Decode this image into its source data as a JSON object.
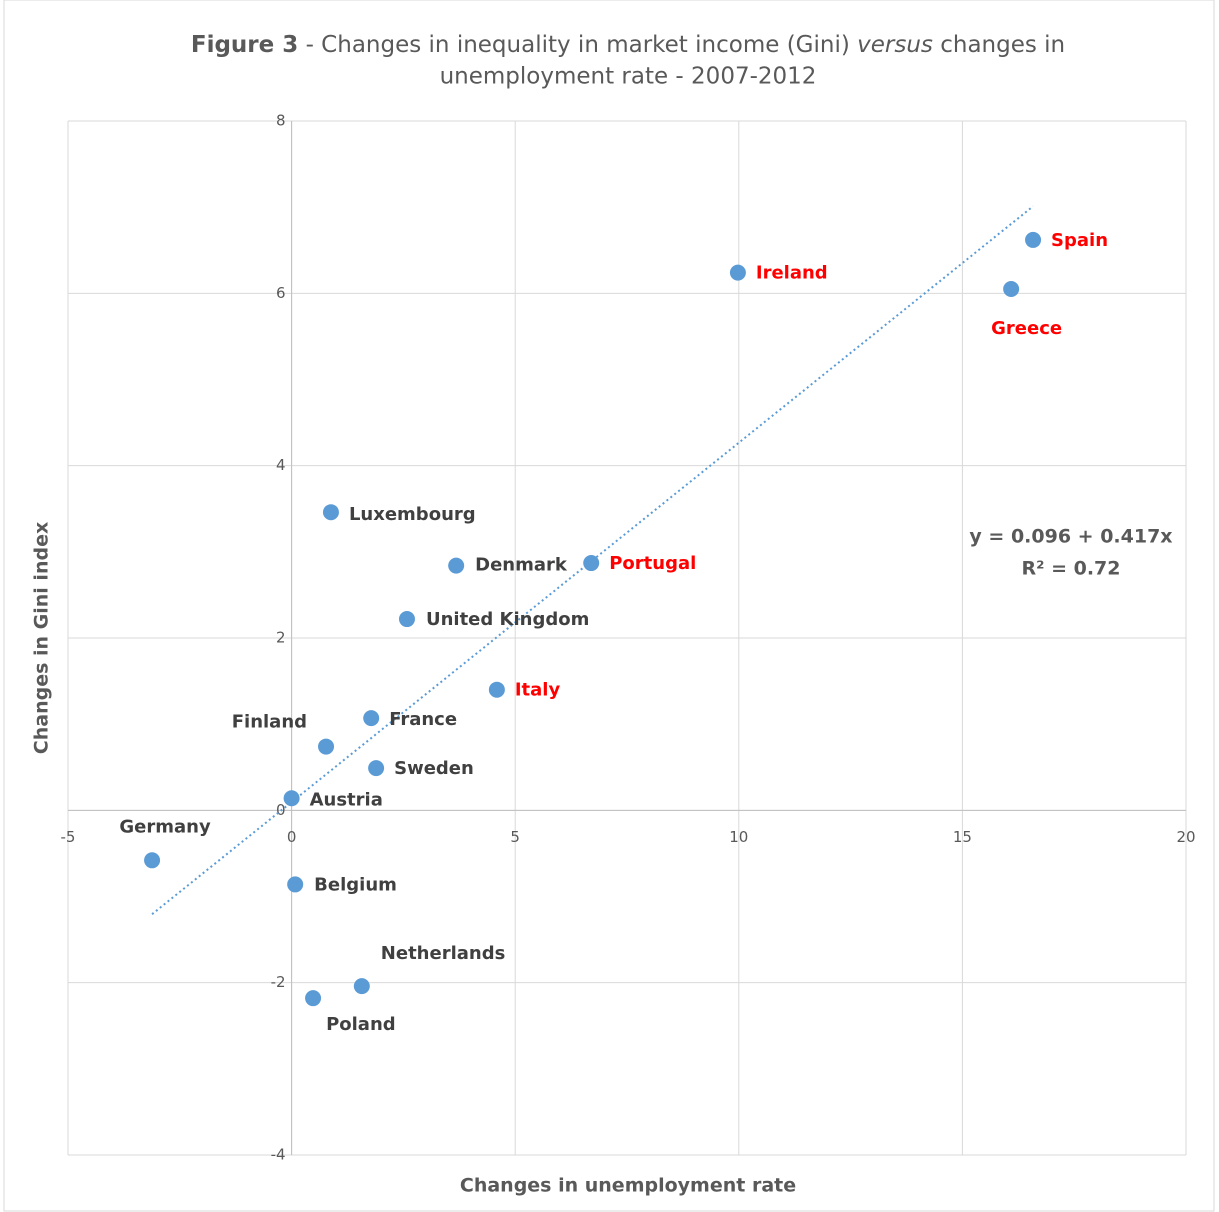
{
  "chart_data": {
    "type": "scatter",
    "title": {
      "line1": [
        "Figure 3",
        " - Changes in inequality in market income (Gini) ",
        "versus",
        " changes in"
      ],
      "line2": "unemployment rate - 2007-2012"
    },
    "x_label": "Changes in unemployment rate",
    "y_label": "Changes in Gini index",
    "xlim": [
      -5,
      20
    ],
    "xticks": [
      -5,
      0,
      5,
      10,
      15,
      20
    ],
    "ylim": [
      -4,
      8
    ],
    "yticks": [
      -4,
      -2,
      0,
      2,
      4,
      6,
      8
    ],
    "grid": true,
    "color": "#5b9bd5",
    "labels": [
      "Germany",
      "Belgium",
      "Poland",
      "Netherlands",
      "Austria",
      "Finland",
      "Sweden",
      "France",
      "Italy",
      "United Kingdom",
      "Denmark",
      "Portugal",
      "Luxembourg",
      "Ireland",
      "Greece",
      "Spain"
    ],
    "label_colors": [
      "#404040",
      "#404040",
      "#404040",
      "#404040",
      "#404040",
      "#404040",
      "#404040",
      "#404040",
      "#ff0000",
      "#404040",
      "#404040",
      "#ff0000",
      "#404040",
      "#ff0000",
      "#ff0000",
      "#ff0000"
    ],
    "x": [
      -3.12,
      0.08,
      0.48,
      1.57,
      0,
      0.77,
      1.89,
      1.78,
      4.59,
      2.58,
      3.68,
      6.7,
      0.88,
      9.98,
      16.09,
      16.58
    ],
    "values": [
      -0.58,
      -0.86,
      -2.18,
      -2.04,
      0.14,
      0.74,
      0.49,
      1.07,
      1.4,
      2.22,
      2.84,
      2.87,
      3.46,
      6.24,
      6.05,
      6.62
    ],
    "trendline": {
      "intercept": 0.096,
      "slope": 0.417,
      "color": "#5b9bd5"
    },
    "equation": "y = 0.096 + 0.417x",
    "r_squared": "R² = 0.72"
  }
}
